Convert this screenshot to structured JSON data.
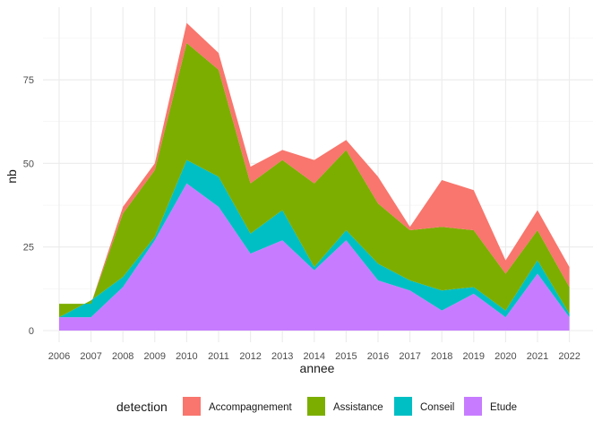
{
  "chart_data": {
    "type": "area",
    "stacked": true,
    "xlabel": "annee",
    "ylabel": "nb",
    "x": [
      2006,
      2007,
      2008,
      2009,
      2010,
      2011,
      2012,
      2013,
      2014,
      2015,
      2016,
      2017,
      2018,
      2019,
      2020,
      2021,
      2022
    ],
    "ylim": [
      0,
      95
    ],
    "yticks": [
      0,
      25,
      50,
      75
    ],
    "grid": true,
    "legend_position": "bottom",
    "legend_title": "detection",
    "series": [
      {
        "name": "Etude",
        "color": "#C77CFF",
        "values": [
          4,
          4,
          13,
          27,
          44,
          37,
          23,
          27,
          18,
          27,
          15,
          12,
          6,
          11,
          4,
          17,
          4
        ]
      },
      {
        "name": "Conseil",
        "color": "#00BFC4",
        "values": [
          0,
          5,
          3,
          1,
          7,
          9,
          6,
          9,
          1,
          3,
          5,
          3,
          6,
          2,
          2,
          4,
          1
        ]
      },
      {
        "name": "Assistance",
        "color": "#7CAE00",
        "values": [
          4,
          -1,
          19,
          20,
          35,
          32,
          15,
          15,
          25,
          24,
          18,
          15,
          19,
          17,
          11,
          9,
          8
        ]
      },
      {
        "name": "Accompagnement",
        "color": "#F8766D",
        "values": [
          0,
          0,
          2,
          2,
          6,
          5,
          5,
          3,
          7,
          3,
          8,
          1,
          14,
          12,
          4,
          6,
          6
        ]
      }
    ],
    "legend_order": [
      "Accompagnement",
      "Assistance",
      "Conseil",
      "Etude"
    ]
  }
}
